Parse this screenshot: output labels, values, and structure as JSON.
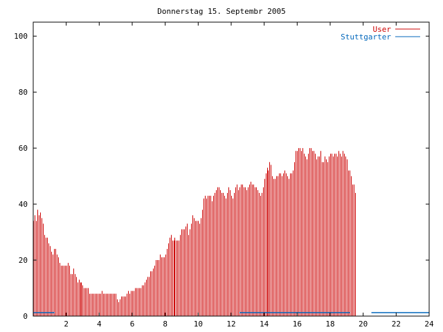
{
  "chart_data": {
    "type": "bar",
    "title": "Donnerstag 15. Septembr 2005",
    "xlabel": "",
    "ylabel": "",
    "xlim": [
      0,
      24
    ],
    "ylim": [
      0,
      105
    ],
    "xticks": [
      "2",
      "4",
      "6",
      "8",
      "10",
      "12",
      "14",
      "16",
      "18",
      "20",
      "22",
      "24"
    ],
    "yticks": [
      "0",
      "20",
      "40",
      "60",
      "80",
      "100"
    ],
    "grid": false,
    "legend_position": "top-right",
    "series": [
      {
        "name": "User",
        "color": "#cc0000",
        "x_start": 0,
        "x_step": 0.0833,
        "values": [
          34,
          36,
          34,
          38,
          36,
          37,
          35,
          33,
          29,
          28,
          28,
          26,
          25,
          23,
          22,
          24,
          24,
          22,
          21,
          19,
          18,
          18,
          18,
          18,
          18,
          19,
          18,
          15,
          15,
          17,
          15,
          14,
          12,
          13,
          12,
          12,
          11,
          10,
          10,
          10,
          10,
          8,
          8,
          8,
          8,
          8,
          8,
          8,
          8,
          8,
          9,
          8,
          8,
          8,
          8,
          8,
          8,
          8,
          8,
          8,
          8,
          6,
          5,
          6,
          7,
          7,
          7,
          7,
          8,
          9,
          8,
          9,
          9,
          9,
          10,
          10,
          10,
          10,
          10,
          11,
          11,
          12,
          13,
          14,
          14,
          16,
          16,
          17,
          18,
          20,
          20,
          20,
          22,
          21,
          21,
          21,
          22,
          24,
          26,
          28,
          29,
          27,
          27,
          28,
          27,
          27,
          27,
          29,
          31,
          31,
          31,
          32,
          33,
          29,
          31,
          33,
          36,
          35,
          34,
          34,
          34,
          33,
          35,
          38,
          42,
          43,
          42,
          43,
          43,
          43,
          41,
          43,
          44,
          45,
          46,
          46,
          45,
          44,
          44,
          43,
          42,
          44,
          46,
          45,
          43,
          42,
          44,
          46,
          47,
          45,
          46,
          47,
          47,
          46,
          46,
          45,
          46,
          47,
          48,
          47,
          47,
          46,
          46,
          45,
          44,
          43,
          44,
          46,
          49,
          51,
          53,
          52,
          55,
          54,
          50,
          49,
          49,
          50,
          50,
          51,
          51,
          50,
          51,
          52,
          51,
          50,
          49,
          51,
          51,
          52,
          55,
          59,
          59,
          60,
          60,
          59,
          60,
          58,
          57,
          56,
          58,
          60,
          60,
          59,
          59,
          58,
          56,
          57,
          57,
          59,
          55,
          55,
          57,
          56,
          55,
          57,
          58,
          58,
          57,
          58,
          58,
          57,
          59,
          58,
          57,
          59,
          58,
          57,
          56,
          52,
          52,
          50,
          47,
          47,
          44
        ]
      },
      {
        "name": "Stuttgarter",
        "color": "#0066bb",
        "segments": [
          {
            "from": 0,
            "to": 1.3,
            "value": 1
          },
          {
            "from": 12.5,
            "to": 19.2,
            "value": 1
          },
          {
            "from": 20.5,
            "to": 24,
            "value": 1
          }
        ]
      }
    ]
  }
}
